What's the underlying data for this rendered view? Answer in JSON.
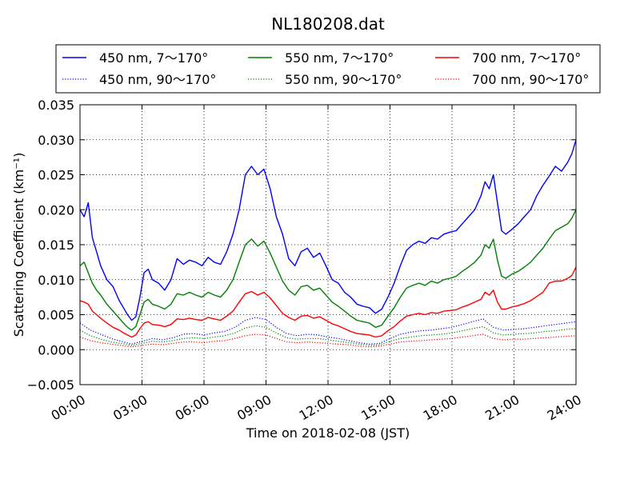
{
  "chart_data": {
    "type": "line",
    "title": "NL180208.dat",
    "xlabel": "Time on 2018-02-08 (JST)",
    "ylabel": "Scattering Coefficient (km⁻¹)",
    "x_unit": "hours",
    "xlim": [
      0,
      24
    ],
    "ylim": [
      -0.005,
      0.035
    ],
    "x_ticks": [
      0,
      3,
      6,
      9,
      12,
      15,
      18,
      21,
      24
    ],
    "x_tick_labels": [
      "00:00",
      "03:00",
      "06:00",
      "09:00",
      "12:00",
      "15:00",
      "18:00",
      "21:00",
      "24:00"
    ],
    "y_ticks": [
      -0.005,
      0.0,
      0.005,
      0.01,
      0.015,
      0.02,
      0.025,
      0.03,
      0.035
    ],
    "y_tick_labels": [
      "−0.005",
      "0.000",
      "0.005",
      "0.010",
      "0.015",
      "0.020",
      "0.025",
      "0.030",
      "0.035"
    ],
    "grid": true,
    "legend_position": "top",
    "series": [
      {
        "name": "450 nm, 7～170°",
        "color": "#0000ff",
        "style": "solid",
        "x": [
          0,
          0.2,
          0.4,
          0.6,
          0.8,
          1.0,
          1.3,
          1.6,
          1.9,
          2.1,
          2.3,
          2.5,
          2.7,
          2.9,
          3.1,
          3.3,
          3.5,
          3.8,
          4.1,
          4.4,
          4.7,
          5.0,
          5.3,
          5.6,
          5.9,
          6.2,
          6.5,
          6.8,
          7.1,
          7.4,
          7.7,
          8.0,
          8.3,
          8.6,
          8.9,
          9.2,
          9.5,
          9.8,
          10.1,
          10.4,
          10.7,
          11.0,
          11.3,
          11.6,
          11.9,
          12.2,
          12.5,
          12.8,
          13.1,
          13.4,
          13.7,
          14.0,
          14.3,
          14.6,
          14.9,
          15.2,
          15.5,
          15.8,
          16.1,
          16.4,
          16.7,
          17.0,
          17.3,
          17.6,
          17.9,
          18.2,
          18.5,
          18.8,
          19.1,
          19.4,
          19.6,
          19.8,
          20.0,
          20.2,
          20.4,
          20.6,
          20.9,
          21.2,
          21.5,
          21.8,
          22.1,
          22.4,
          22.7,
          23.0,
          23.3,
          23.6,
          23.8,
          24.0
        ],
        "y": [
          0.02,
          0.019,
          0.021,
          0.016,
          0.014,
          0.012,
          0.01,
          0.009,
          0.007,
          0.006,
          0.005,
          0.0042,
          0.0047,
          0.0075,
          0.011,
          0.0115,
          0.01,
          0.0095,
          0.0085,
          0.01,
          0.013,
          0.0122,
          0.0128,
          0.0125,
          0.012,
          0.0132,
          0.0125,
          0.0122,
          0.014,
          0.0165,
          0.02,
          0.025,
          0.0262,
          0.025,
          0.0258,
          0.023,
          0.019,
          0.0165,
          0.013,
          0.012,
          0.014,
          0.0145,
          0.0132,
          0.0138,
          0.012,
          0.01,
          0.0095,
          0.0082,
          0.0075,
          0.0065,
          0.0062,
          0.006,
          0.0052,
          0.0058,
          0.0075,
          0.0095,
          0.012,
          0.0142,
          0.015,
          0.0155,
          0.0152,
          0.016,
          0.0158,
          0.0165,
          0.0168,
          0.017,
          0.018,
          0.019,
          0.02,
          0.022,
          0.024,
          0.023,
          0.025,
          0.021,
          0.017,
          0.0165,
          0.0172,
          0.018,
          0.019,
          0.02,
          0.022,
          0.0235,
          0.0248,
          0.0262,
          0.0255,
          0.0268,
          0.028,
          0.03
        ]
      },
      {
        "name": "550 nm, 7～170°",
        "color": "#008000",
        "style": "solid",
        "x": [
          0,
          0.2,
          0.4,
          0.6,
          0.8,
          1.0,
          1.3,
          1.6,
          1.9,
          2.1,
          2.3,
          2.5,
          2.7,
          2.9,
          3.1,
          3.3,
          3.5,
          3.8,
          4.1,
          4.4,
          4.7,
          5.0,
          5.3,
          5.6,
          5.9,
          6.2,
          6.5,
          6.8,
          7.1,
          7.4,
          7.7,
          8.0,
          8.3,
          8.6,
          8.9,
          9.2,
          9.5,
          9.8,
          10.1,
          10.4,
          10.7,
          11.0,
          11.3,
          11.6,
          11.9,
          12.2,
          12.5,
          12.8,
          13.1,
          13.4,
          13.7,
          14.0,
          14.3,
          14.6,
          14.9,
          15.2,
          15.5,
          15.8,
          16.1,
          16.4,
          16.7,
          17.0,
          17.3,
          17.6,
          17.9,
          18.2,
          18.5,
          18.8,
          19.1,
          19.4,
          19.6,
          19.8,
          20.0,
          20.2,
          20.4,
          20.6,
          20.9,
          21.2,
          21.5,
          21.8,
          22.1,
          22.4,
          22.7,
          23.0,
          23.3,
          23.6,
          23.8,
          24.0
        ],
        "y": [
          0.012,
          0.0125,
          0.011,
          0.0095,
          0.0085,
          0.0078,
          0.0065,
          0.0055,
          0.0045,
          0.0038,
          0.0032,
          0.0028,
          0.0033,
          0.005,
          0.0068,
          0.0072,
          0.0065,
          0.0062,
          0.0058,
          0.0065,
          0.008,
          0.0078,
          0.0082,
          0.0078,
          0.0075,
          0.0082,
          0.0078,
          0.0075,
          0.0085,
          0.01,
          0.0125,
          0.015,
          0.0158,
          0.0148,
          0.0155,
          0.0138,
          0.0118,
          0.0098,
          0.0085,
          0.0078,
          0.009,
          0.0092,
          0.0085,
          0.0088,
          0.0078,
          0.0068,
          0.0062,
          0.0055,
          0.0048,
          0.0042,
          0.004,
          0.0038,
          0.0032,
          0.0035,
          0.0048,
          0.006,
          0.0075,
          0.0088,
          0.0092,
          0.0095,
          0.0092,
          0.0098,
          0.0095,
          0.01,
          0.0102,
          0.0105,
          0.0112,
          0.0118,
          0.0125,
          0.0135,
          0.015,
          0.0145,
          0.0158,
          0.0128,
          0.0105,
          0.0102,
          0.0108,
          0.0112,
          0.0118,
          0.0125,
          0.0135,
          0.0145,
          0.0158,
          0.017,
          0.0175,
          0.018,
          0.0188,
          0.02
        ]
      },
      {
        "name": "700 nm, 7～170°",
        "color": "#ff0000",
        "style": "solid",
        "x": [
          0,
          0.2,
          0.4,
          0.6,
          0.8,
          1.0,
          1.3,
          1.6,
          1.9,
          2.1,
          2.3,
          2.5,
          2.7,
          2.9,
          3.1,
          3.3,
          3.5,
          3.8,
          4.1,
          4.4,
          4.7,
          5.0,
          5.3,
          5.6,
          5.9,
          6.2,
          6.5,
          6.8,
          7.1,
          7.4,
          7.7,
          8.0,
          8.3,
          8.6,
          8.9,
          9.2,
          9.5,
          9.8,
          10.1,
          10.4,
          10.7,
          11.0,
          11.3,
          11.6,
          11.9,
          12.2,
          12.5,
          12.8,
          13.1,
          13.4,
          13.7,
          14.0,
          14.3,
          14.6,
          14.9,
          15.2,
          15.5,
          15.8,
          16.1,
          16.4,
          16.7,
          17.0,
          17.3,
          17.6,
          17.9,
          18.2,
          18.5,
          18.8,
          19.1,
          19.4,
          19.6,
          19.8,
          20.0,
          20.2,
          20.4,
          20.6,
          20.9,
          21.2,
          21.5,
          21.8,
          22.1,
          22.4,
          22.7,
          23.0,
          23.3,
          23.6,
          23.8,
          24.0
        ],
        "y": [
          0.007,
          0.0068,
          0.0065,
          0.0055,
          0.005,
          0.0045,
          0.0038,
          0.0032,
          0.0028,
          0.0024,
          0.0021,
          0.0018,
          0.0021,
          0.003,
          0.0038,
          0.004,
          0.0036,
          0.0035,
          0.0033,
          0.0036,
          0.0044,
          0.0043,
          0.0045,
          0.0043,
          0.0042,
          0.0046,
          0.0044,
          0.0042,
          0.0048,
          0.0055,
          0.0068,
          0.008,
          0.0083,
          0.0078,
          0.0082,
          0.0074,
          0.0063,
          0.0052,
          0.0046,
          0.0042,
          0.0048,
          0.0049,
          0.0045,
          0.0047,
          0.0042,
          0.0037,
          0.0034,
          0.003,
          0.0026,
          0.0023,
          0.0022,
          0.0021,
          0.0018,
          0.002,
          0.0027,
          0.0033,
          0.0041,
          0.0048,
          0.005,
          0.0052,
          0.005,
          0.0053,
          0.0052,
          0.0055,
          0.0056,
          0.0057,
          0.0061,
          0.0064,
          0.0068,
          0.0072,
          0.0082,
          0.0078,
          0.0085,
          0.0068,
          0.0058,
          0.0058,
          0.0061,
          0.0063,
          0.0066,
          0.007,
          0.0076,
          0.0082,
          0.0095,
          0.0098,
          0.0098,
          0.0102,
          0.0106,
          0.0118
        ]
      },
      {
        "name": "450 nm, 90～170°",
        "color": "#0000ff",
        "style": "dotted",
        "x": [
          0,
          0.5,
          1.0,
          1.5,
          2.0,
          2.5,
          3.0,
          3.5,
          4.0,
          4.5,
          5.0,
          5.5,
          6.0,
          6.5,
          7.0,
          7.5,
          8.0,
          8.5,
          9.0,
          9.5,
          10.0,
          10.5,
          11.0,
          11.5,
          12.0,
          12.5,
          13.0,
          13.5,
          14.0,
          14.5,
          15.0,
          15.5,
          16.0,
          16.5,
          17.0,
          17.5,
          18.0,
          18.5,
          19.0,
          19.5,
          20.0,
          20.5,
          21.0,
          21.5,
          22.0,
          22.5,
          23.0,
          23.5,
          24.0
        ],
        "y": [
          0.0038,
          0.0028,
          0.0022,
          0.0016,
          0.0012,
          0.0008,
          0.0012,
          0.0016,
          0.0014,
          0.0017,
          0.0022,
          0.0023,
          0.0021,
          0.0024,
          0.0026,
          0.0032,
          0.0042,
          0.0046,
          0.0043,
          0.0032,
          0.0023,
          0.002,
          0.0022,
          0.0021,
          0.0018,
          0.0016,
          0.0013,
          0.001,
          0.0008,
          0.0009,
          0.0016,
          0.0022,
          0.0025,
          0.0027,
          0.0028,
          0.003,
          0.0032,
          0.0036,
          0.004,
          0.0044,
          0.0032,
          0.0028,
          0.0029,
          0.003,
          0.0032,
          0.0034,
          0.0036,
          0.0038,
          0.004
        ]
      },
      {
        "name": "550 nm, 90～170°",
        "color": "#008000",
        "style": "dotted",
        "x": [
          0,
          0.5,
          1.0,
          1.5,
          2.0,
          2.5,
          3.0,
          3.5,
          4.0,
          4.5,
          5.0,
          5.5,
          6.0,
          6.5,
          7.0,
          7.5,
          8.0,
          8.5,
          9.0,
          9.5,
          10.0,
          10.5,
          11.0,
          11.5,
          12.0,
          12.5,
          13.0,
          13.5,
          14.0,
          14.5,
          15.0,
          15.5,
          16.0,
          16.5,
          17.0,
          17.5,
          18.0,
          18.5,
          19.0,
          19.5,
          20.0,
          20.5,
          21.0,
          21.5,
          22.0,
          22.5,
          23.0,
          23.5,
          24.0
        ],
        "y": [
          0.0028,
          0.002,
          0.0015,
          0.0011,
          0.0009,
          0.0006,
          0.0009,
          0.0012,
          0.0011,
          0.0013,
          0.0016,
          0.0017,
          0.0016,
          0.0018,
          0.002,
          0.0024,
          0.0031,
          0.0034,
          0.0032,
          0.0024,
          0.0017,
          0.0015,
          0.0016,
          0.0016,
          0.0014,
          0.0012,
          0.001,
          0.0008,
          0.0006,
          0.0007,
          0.0012,
          0.0016,
          0.0018,
          0.002,
          0.0021,
          0.0022,
          0.0024,
          0.0027,
          0.003,
          0.0033,
          0.0024,
          0.0021,
          0.0022,
          0.0023,
          0.0024,
          0.0026,
          0.0027,
          0.0029,
          0.003
        ]
      },
      {
        "name": "700 nm, 90～170°",
        "color": "#ff0000",
        "style": "dotted",
        "x": [
          0,
          0.5,
          1.0,
          1.5,
          2.0,
          2.5,
          3.0,
          3.5,
          4.0,
          4.5,
          5.0,
          5.5,
          6.0,
          6.5,
          7.0,
          7.5,
          8.0,
          8.5,
          9.0,
          9.5,
          10.0,
          10.5,
          11.0,
          11.5,
          12.0,
          12.5,
          13.0,
          13.5,
          14.0,
          14.5,
          15.0,
          15.5,
          16.0,
          16.5,
          17.0,
          17.5,
          18.0,
          18.5,
          19.0,
          19.5,
          20.0,
          20.5,
          21.0,
          21.5,
          22.0,
          22.5,
          23.0,
          23.5,
          24.0
        ],
        "y": [
          0.0018,
          0.0013,
          0.001,
          0.0008,
          0.0006,
          0.0004,
          0.0006,
          0.0008,
          0.0007,
          0.0009,
          0.0011,
          0.0011,
          0.001,
          0.0012,
          0.0013,
          0.0016,
          0.002,
          0.0022,
          0.0021,
          0.0016,
          0.0011,
          0.001,
          0.0011,
          0.001,
          0.0009,
          0.0008,
          0.0007,
          0.0005,
          0.0004,
          0.0005,
          0.0008,
          0.0011,
          0.0012,
          0.0013,
          0.0014,
          0.0015,
          0.0016,
          0.0018,
          0.002,
          0.0022,
          0.0016,
          0.0014,
          0.0015,
          0.0015,
          0.0016,
          0.0017,
          0.0018,
          0.0019,
          0.002
        ]
      }
    ]
  }
}
